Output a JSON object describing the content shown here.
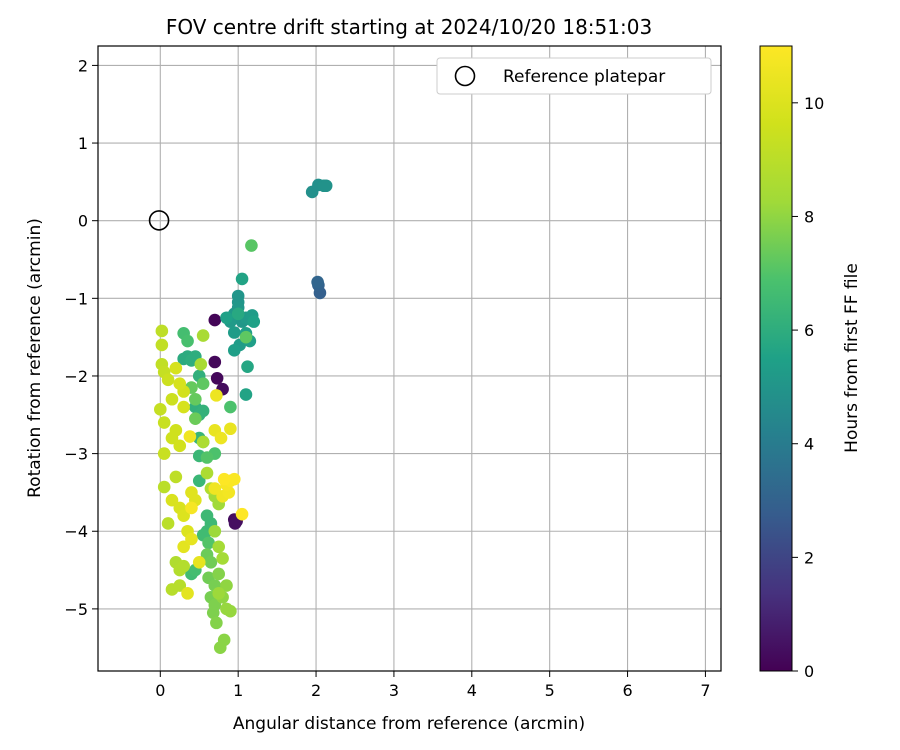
{
  "chart_data": {
    "type": "scatter",
    "title": "FOV centre drift starting at 2024/10/20 18:51:03",
    "xlabel": "Angular distance from reference (arcmin)",
    "ylabel": "Rotation from reference (arcmin)",
    "xlim": [
      -0.8,
      7.2
    ],
    "ylim": [
      -5.8,
      2.25
    ],
    "xticks": [
      0,
      1,
      2,
      3,
      4,
      5,
      6,
      7
    ],
    "yticks": [
      2,
      1,
      0,
      -1,
      -2,
      -3,
      -4,
      -5
    ],
    "grid": true,
    "legend": {
      "position": "top-right",
      "entries": [
        "Reference platepar"
      ]
    },
    "colorbar": {
      "label": "Hours from first FF file",
      "colormap": "viridis",
      "range": [
        0,
        11
      ],
      "ticks": [
        0,
        2,
        4,
        6,
        8,
        10
      ]
    },
    "reference_point": {
      "x": 0,
      "y": 0,
      "label": "Reference platepar"
    },
    "points": [
      [
        0.7,
        -1.28,
        0.1
      ],
      [
        0.7,
        -1.82,
        0.2
      ],
      [
        0.73,
        -2.03,
        0.2
      ],
      [
        0.8,
        -2.17,
        0.3
      ],
      [
        0.95,
        -3.85,
        0.3
      ],
      [
        0.96,
        -3.9,
        0.4
      ],
      [
        0.98,
        -3.87,
        0.4
      ],
      [
        2.05,
        -0.93,
        2.9
      ],
      [
        2.03,
        -0.83,
        3.0
      ],
      [
        2.02,
        -0.79,
        3.1
      ],
      [
        1.95,
        0.37,
        4.8
      ],
      [
        2.03,
        0.46,
        4.8
      ],
      [
        2.1,
        0.45,
        4.9
      ],
      [
        2.13,
        0.45,
        4.9
      ],
      [
        1.0,
        -0.97,
        5.0
      ],
      [
        1.0,
        -1.05,
        5.0
      ],
      [
        1.0,
        -1.12,
        5.1
      ],
      [
        0.95,
        -1.2,
        5.1
      ],
      [
        1.05,
        -1.3,
        5.1
      ],
      [
        1.1,
        -1.25,
        5.2
      ],
      [
        0.9,
        -1.3,
        5.2
      ],
      [
        1.15,
        -1.27,
        5.2
      ],
      [
        1.18,
        -1.22,
        5.3
      ],
      [
        0.95,
        -1.44,
        5.3
      ],
      [
        1.02,
        -1.6,
        5.3
      ],
      [
        0.95,
        -1.67,
        5.4
      ],
      [
        1.1,
        -1.45,
        5.4
      ],
      [
        1.15,
        -1.55,
        5.4
      ],
      [
        1.2,
        -1.3,
        5.5
      ],
      [
        0.85,
        -1.25,
        5.5
      ],
      [
        1.05,
        -0.75,
        5.6
      ],
      [
        1.1,
        -2.24,
        5.6
      ],
      [
        1.12,
        -1.88,
        5.7
      ],
      [
        1.0,
        -1.2,
        5.8
      ],
      [
        0.3,
        -1.78,
        5.9
      ],
      [
        0.35,
        -1.75,
        5.9
      ],
      [
        0.45,
        -1.75,
        6.0
      ],
      [
        0.4,
        -1.8,
        6.0
      ],
      [
        0.5,
        -2.0,
        6.1
      ],
      [
        0.45,
        -2.4,
        6.1
      ],
      [
        0.5,
        -2.5,
        6.2
      ],
      [
        0.55,
        -2.45,
        6.2
      ],
      [
        0.5,
        -2.8,
        6.3
      ],
      [
        0.55,
        -2.85,
        6.3
      ],
      [
        0.5,
        -3.03,
        6.4
      ],
      [
        0.5,
        -3.35,
        6.4
      ],
      [
        0.6,
        -3.8,
        6.5
      ],
      [
        0.65,
        -3.9,
        6.5
      ],
      [
        0.6,
        -4.0,
        6.5
      ],
      [
        0.55,
        -4.05,
        6.6
      ],
      [
        0.4,
        -4.55,
        6.6
      ],
      [
        0.45,
        -4.5,
        6.7
      ],
      [
        0.3,
        -1.45,
        6.7
      ],
      [
        0.35,
        -1.55,
        6.8
      ],
      [
        0.9,
        -2.4,
        6.9
      ],
      [
        0.7,
        -3.0,
        6.9
      ],
      [
        0.6,
        -3.05,
        7.0
      ],
      [
        0.62,
        -4.15,
        7.0
      ],
      [
        1.17,
        -0.32,
        7.1
      ],
      [
        1.1,
        -1.5,
        7.2
      ],
      [
        0.55,
        -2.1,
        7.2
      ],
      [
        0.4,
        -2.15,
        7.3
      ],
      [
        0.45,
        -2.3,
        7.3
      ],
      [
        0.45,
        -2.55,
        7.4
      ],
      [
        0.6,
        -4.3,
        7.4
      ],
      [
        0.65,
        -4.4,
        7.5
      ],
      [
        0.62,
        -4.6,
        7.5
      ],
      [
        0.7,
        -4.7,
        7.6
      ],
      [
        0.65,
        -4.85,
        7.6
      ],
      [
        0.7,
        -4.95,
        7.7
      ],
      [
        0.68,
        -5.05,
        7.7
      ],
      [
        0.72,
        -5.18,
        7.8
      ],
      [
        0.75,
        -4.55,
        7.8
      ],
      [
        0.82,
        -5.4,
        7.9
      ],
      [
        0.77,
        -5.5,
        7.9
      ],
      [
        0.85,
        -4.7,
        8.0
      ],
      [
        0.8,
        -4.85,
        8.0
      ],
      [
        0.9,
        -5.03,
        8.1
      ],
      [
        0.85,
        -5.0,
        8.1
      ],
      [
        0.75,
        -4.8,
        8.2
      ],
      [
        0.7,
        -4.0,
        8.2
      ],
      [
        0.75,
        -3.65,
        8.3
      ],
      [
        0.7,
        -3.55,
        8.3
      ],
      [
        0.75,
        -4.2,
        8.4
      ],
      [
        0.8,
        -4.35,
        8.4
      ],
      [
        0.55,
        -1.48,
        8.5
      ],
      [
        0.52,
        -1.85,
        8.5
      ],
      [
        0.55,
        -2.85,
        8.6
      ],
      [
        0.6,
        -3.25,
        8.6
      ],
      [
        0.65,
        -3.45,
        8.7
      ],
      [
        0.2,
        -4.4,
        8.7
      ],
      [
        0.25,
        -4.5,
        8.8
      ],
      [
        0.3,
        -4.45,
        8.8
      ],
      [
        0.15,
        -4.75,
        8.9
      ],
      [
        0.25,
        -4.7,
        8.9
      ],
      [
        0.1,
        -3.9,
        9.0
      ],
      [
        0.05,
        -3.43,
        9.0
      ],
      [
        0.2,
        -3.3,
        9.1
      ],
      [
        0.02,
        -1.42,
        9.1
      ],
      [
        0.02,
        -1.6,
        9.2
      ],
      [
        0.02,
        -1.85,
        9.2
      ],
      [
        0.05,
        -1.95,
        9.3
      ],
      [
        0.0,
        -2.43,
        9.3
      ],
      [
        0.05,
        -2.6,
        9.4
      ],
      [
        0.05,
        -3.0,
        9.4
      ],
      [
        0.1,
        -2.05,
        9.5
      ],
      [
        0.15,
        -2.3,
        9.5
      ],
      [
        0.2,
        -2.7,
        9.6
      ],
      [
        0.15,
        -2.8,
        9.6
      ],
      [
        0.25,
        -2.9,
        9.7
      ],
      [
        0.3,
        -2.2,
        9.7
      ],
      [
        0.2,
        -1.9,
        9.8
      ],
      [
        0.25,
        -2.1,
        9.8
      ],
      [
        0.3,
        -2.4,
        9.8
      ],
      [
        0.15,
        -3.6,
        9.9
      ],
      [
        0.25,
        -3.7,
        9.9
      ],
      [
        0.3,
        -3.8,
        10.0
      ],
      [
        0.35,
        -4.0,
        10.0
      ],
      [
        0.4,
        -3.5,
        10.1
      ],
      [
        0.45,
        -3.6,
        10.1
      ],
      [
        0.3,
        -4.2,
        10.2
      ],
      [
        0.35,
        -4.8,
        10.2
      ],
      [
        0.5,
        -4.4,
        10.3
      ],
      [
        0.4,
        -4.1,
        10.3
      ],
      [
        0.9,
        -2.68,
        10.4
      ],
      [
        0.7,
        -2.7,
        10.4
      ],
      [
        0.78,
        -2.8,
        10.5
      ],
      [
        0.72,
        -2.25,
        10.5
      ],
      [
        0.7,
        -3.45,
        10.6
      ],
      [
        0.8,
        -3.55,
        10.6
      ],
      [
        0.88,
        -3.5,
        10.7
      ],
      [
        0.85,
        -3.4,
        10.8
      ],
      [
        0.95,
        -3.33,
        10.9
      ],
      [
        0.9,
        -3.35,
        10.9
      ],
      [
        0.82,
        -3.33,
        11.0
      ],
      [
        1.05,
        -3.78,
        11.0
      ],
      [
        0.38,
        -2.78,
        10.6
      ],
      [
        0.4,
        -3.7,
        10.8
      ]
    ]
  }
}
